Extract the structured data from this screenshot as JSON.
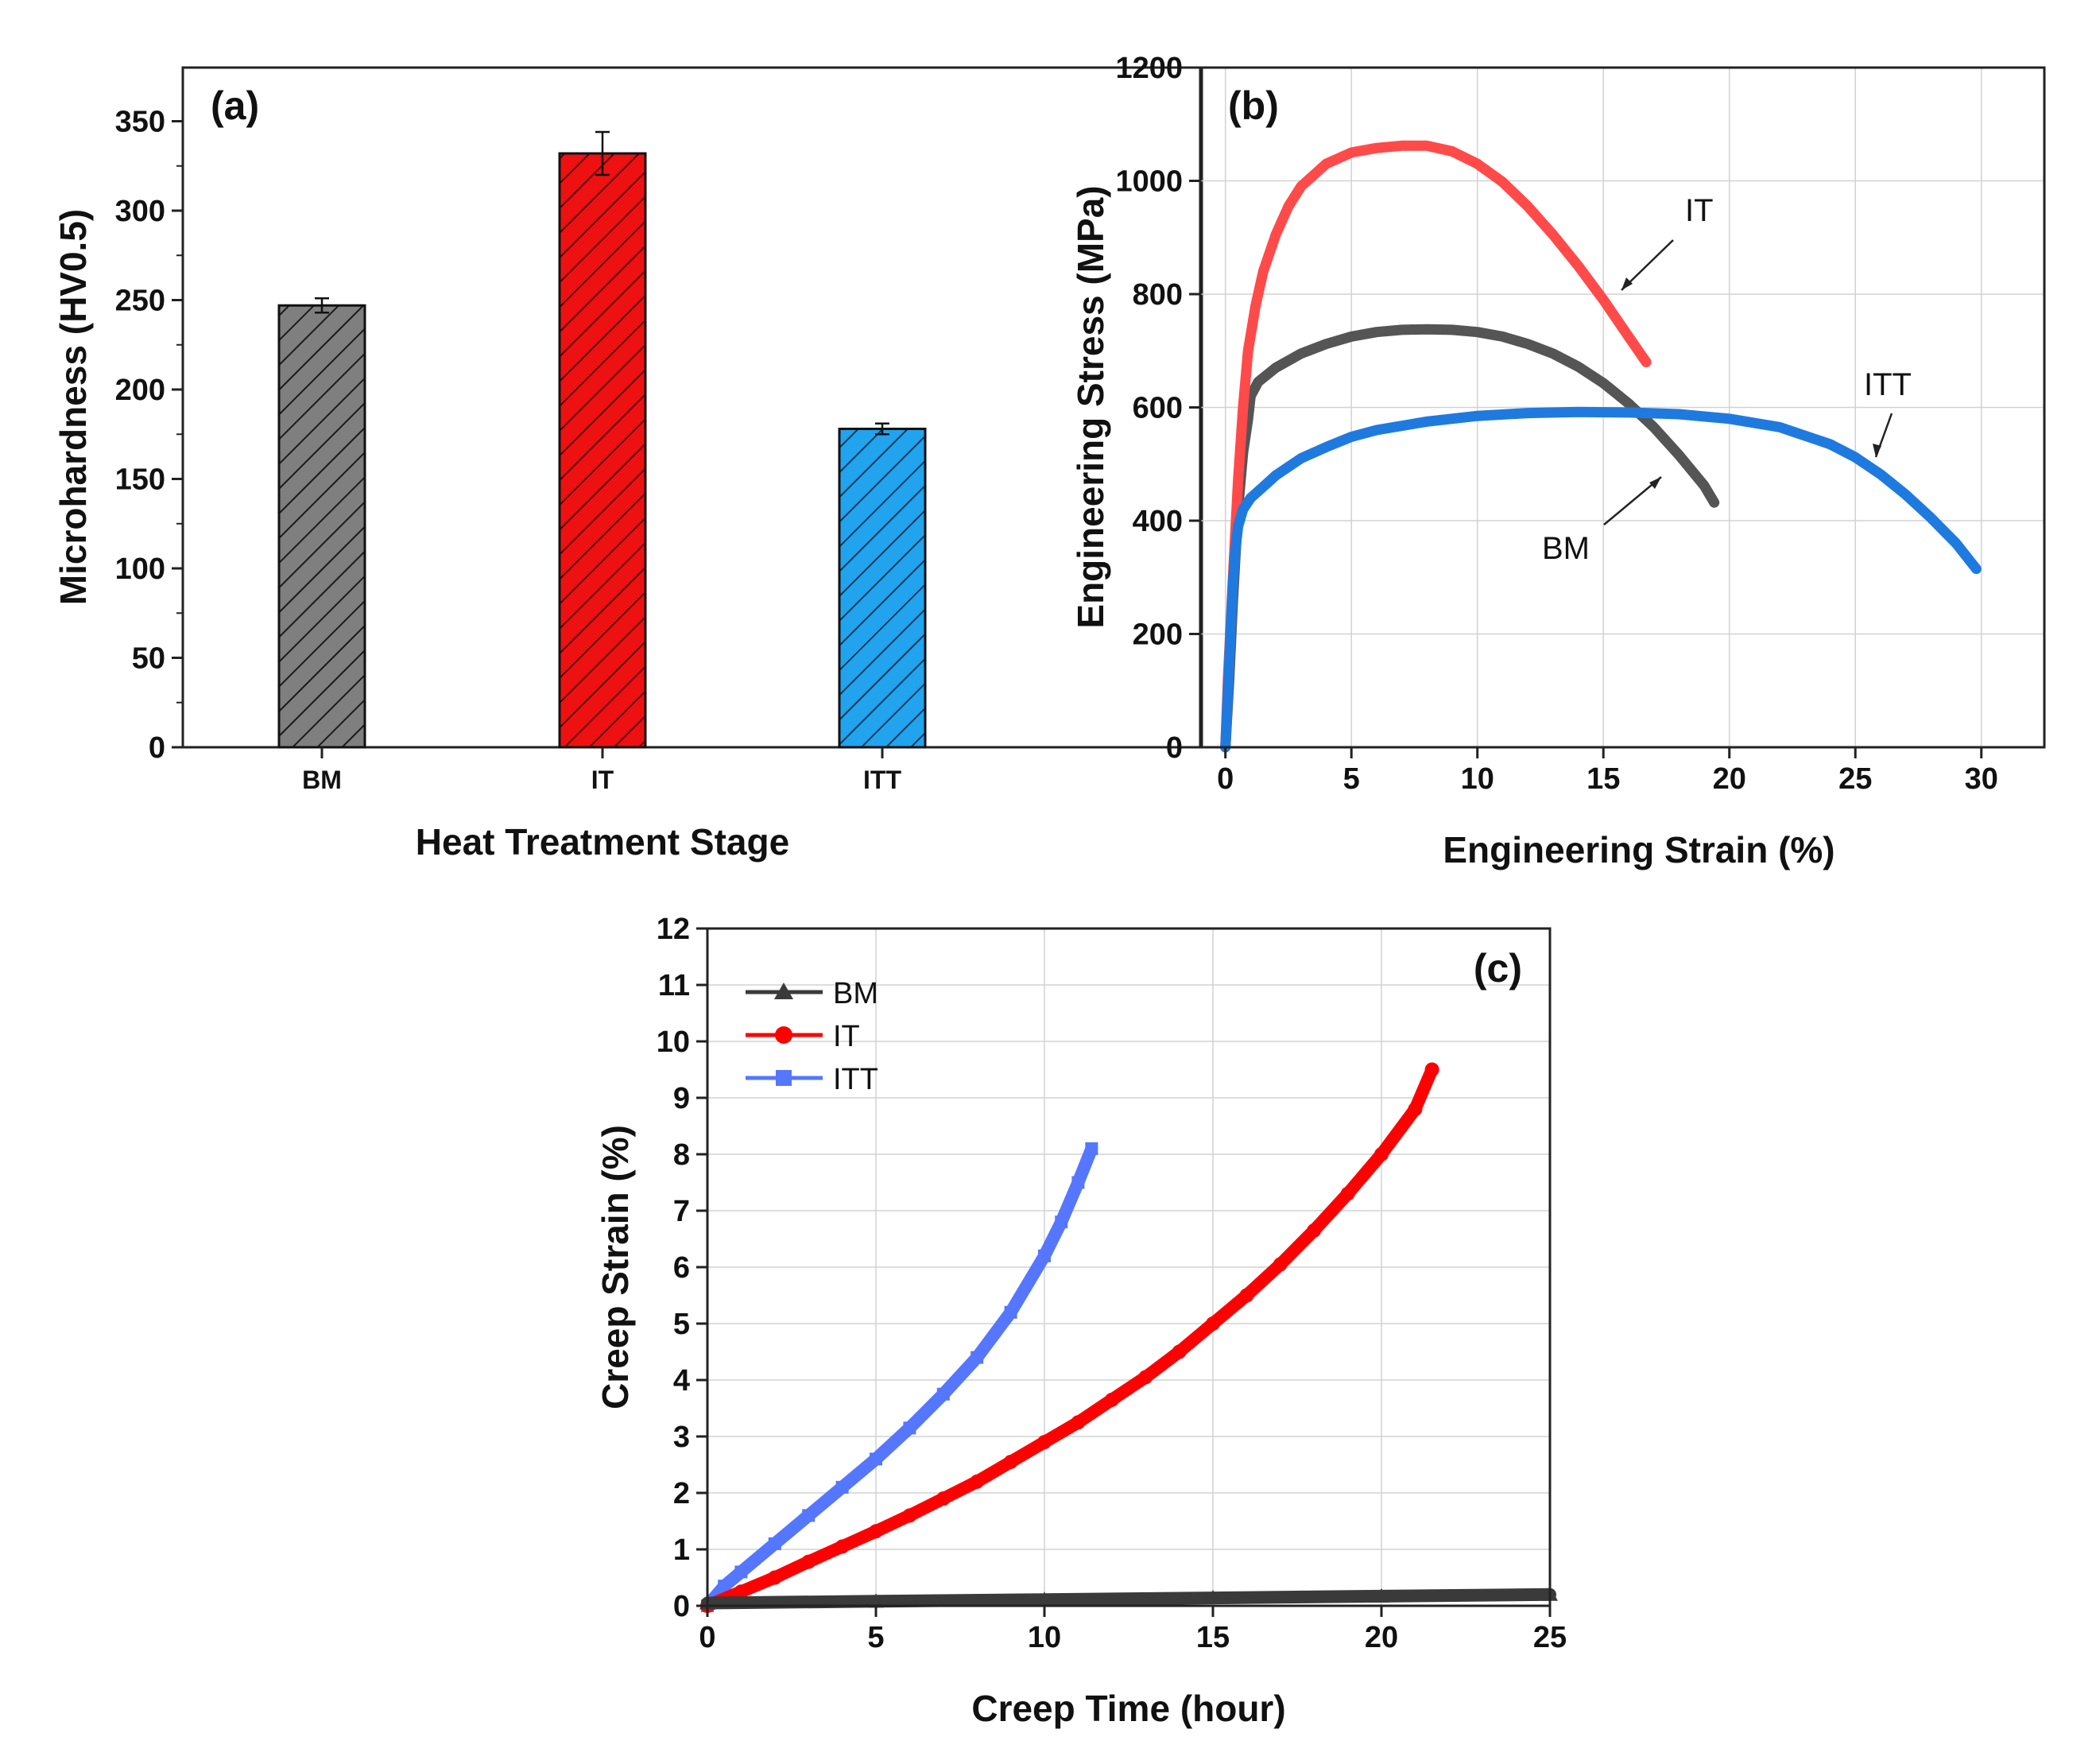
{
  "chart_data": [
    {
      "panel": "(a)",
      "type": "bar",
      "xlabel": "Heat Treatment Stage",
      "ylabel": "Microhardness (HV0.5)",
      "categories": [
        "BM",
        "IT",
        "ITT"
      ],
      "values": [
        247,
        332,
        178
      ],
      "errors": [
        4,
        12,
        3
      ],
      "colors": [
        "#7f7f7f",
        "#ee1111",
        "#22a3ee"
      ],
      "hatch": "diagonal",
      "ylim": [
        0,
        380
      ],
      "yticks": [
        0,
        50,
        100,
        150,
        200,
        250,
        300,
        350
      ],
      "ytick_labels": [
        "0",
        "50",
        "100",
        "150",
        "200",
        "250",
        "300",
        "350"
      ]
    },
    {
      "panel": "(b)",
      "type": "scatter",
      "xlabel": "Engineering Strain (%)",
      "ylabel": "Engineering Stress (MPa)",
      "xlim": [
        -1,
        32.5
      ],
      "ylim": [
        0,
        1200
      ],
      "xticks": [
        0,
        5,
        10,
        15,
        20,
        25,
        30
      ],
      "xtick_labels": [
        "0",
        "5",
        "10",
        "15",
        "20",
        "25",
        "30"
      ],
      "yticks": [
        0,
        200,
        400,
        600,
        800,
        1000,
        1200
      ],
      "ytick_labels": [
        "0",
        "200",
        "400",
        "600",
        "800",
        "1000",
        "1200"
      ],
      "grid": true,
      "series": [
        {
          "name": "BM",
          "color": "#555555",
          "x": [
            0,
            0.15,
            0.3,
            0.5,
            0.7,
            0.9,
            1.0,
            1.3,
            2,
            3,
            4,
            5,
            6,
            7,
            8,
            9,
            10,
            11,
            12,
            13,
            14,
            15,
            16,
            17,
            18,
            19,
            19.4
          ],
          "y": [
            0,
            120,
            260,
            420,
            520,
            580,
            620,
            645,
            670,
            695,
            712,
            725,
            733,
            737,
            738,
            737,
            733,
            725,
            712,
            695,
            672,
            643,
            607,
            565,
            516,
            462,
            432
          ]
        },
        {
          "name": "IT",
          "color": "#ff4a4a",
          "x": [
            0,
            0.1,
            0.3,
            0.5,
            0.7,
            0.9,
            1.2,
            1.5,
            2,
            2.5,
            3,
            4,
            5,
            6,
            7,
            8,
            9,
            10,
            11,
            12,
            13,
            14,
            15,
            16,
            16.7
          ],
          "y": [
            0,
            120,
            300,
            470,
            600,
            700,
            780,
            840,
            905,
            955,
            990,
            1030,
            1050,
            1058,
            1062,
            1062,
            1052,
            1030,
            998,
            955,
            905,
            850,
            790,
            725,
            680
          ]
        },
        {
          "name": "ITT",
          "color": "#1f7ae0",
          "x": [
            0,
            0.1,
            0.2,
            0.3,
            0.4,
            0.5,
            0.7,
            1,
            1.5,
            2,
            3,
            4,
            5,
            6,
            8,
            10,
            12,
            14,
            16,
            18,
            20,
            22,
            24,
            25,
            26,
            27,
            28,
            29,
            29.8
          ],
          "y": [
            0,
            100,
            200,
            290,
            350,
            390,
            420,
            440,
            460,
            480,
            510,
            530,
            548,
            560,
            575,
            585,
            590,
            592,
            591,
            588,
            580,
            565,
            535,
            512,
            482,
            446,
            405,
            360,
            315
          ]
        }
      ],
      "annotations": [
        "IT",
        "ITT",
        "BM"
      ]
    },
    {
      "panel": "(c)",
      "type": "line",
      "xlabel": "Creep Time (hour)",
      "ylabel": "Creep Strain (%)",
      "xlim": [
        0,
        25
      ],
      "ylim": [
        0,
        12
      ],
      "xticks": [
        0,
        5,
        10,
        15,
        20,
        25
      ],
      "xtick_labels": [
        "0",
        "5",
        "10",
        "15",
        "20",
        "25"
      ],
      "yticks": [
        0,
        1,
        2,
        3,
        4,
        5,
        6,
        7,
        8,
        9,
        10,
        11,
        12
      ],
      "ytick_labels": [
        "0",
        "1",
        "2",
        "3",
        "4",
        "5",
        "6",
        "7",
        "8",
        "9",
        "10",
        "11",
        "12"
      ],
      "grid": true,
      "legend_position": "top-left",
      "series": [
        {
          "name": "BM",
          "color": "#3a3a3a",
          "marker": "triangle",
          "x": [
            0,
            5,
            10,
            15,
            20,
            25
          ],
          "y": [
            0.05,
            0.08,
            0.11,
            0.14,
            0.17,
            0.2
          ]
        },
        {
          "name": "IT",
          "color": "#ff0000",
          "marker": "circle",
          "x": [
            0,
            1,
            2,
            3,
            4,
            5,
            6,
            7,
            8,
            9,
            10,
            11,
            12,
            13,
            14,
            15,
            16,
            17,
            18,
            19,
            20,
            21,
            21.5
          ],
          "y": [
            0,
            0.25,
            0.5,
            0.78,
            1.05,
            1.32,
            1.6,
            1.9,
            2.2,
            2.55,
            2.9,
            3.25,
            3.65,
            4.05,
            4.5,
            5.0,
            5.5,
            6.05,
            6.65,
            7.3,
            8.0,
            8.8,
            9.5
          ]
        },
        {
          "name": "ITT",
          "color": "#5577ff",
          "marker": "square",
          "x": [
            0,
            0.5,
            1,
            2,
            3,
            4,
            5,
            6,
            7,
            8,
            9,
            10,
            10.5,
            11,
            11.4
          ],
          "y": [
            0,
            0.35,
            0.6,
            1.1,
            1.6,
            2.1,
            2.6,
            3.15,
            3.75,
            4.4,
            5.2,
            6.2,
            6.8,
            7.5,
            8.1
          ]
        }
      ]
    }
  ]
}
